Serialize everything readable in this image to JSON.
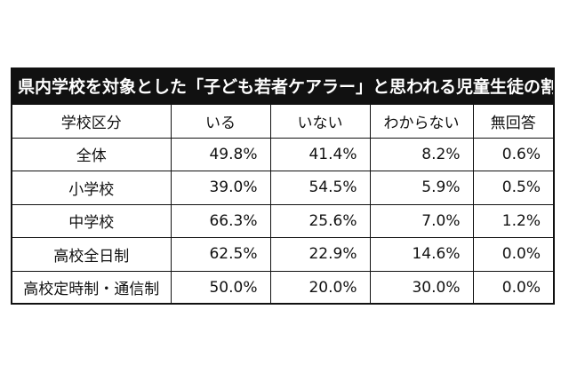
{
  "table": {
    "title": "県内学校を対象とした「子ども若者ケアラー」と思われる児童生徒の割合",
    "headers": [
      "学校区分",
      "いる",
      "いない",
      "わからない",
      "無回答"
    ],
    "rows": [
      {
        "label": "全体",
        "values": [
          "49.8%",
          "41.4%",
          "8.2%",
          "0.6%"
        ]
      },
      {
        "label": "小学校",
        "values": [
          "39.0%",
          "54.5%",
          "5.9%",
          "0.5%"
        ]
      },
      {
        "label": "中学校",
        "values": [
          "66.3%",
          "25.6%",
          "7.0%",
          "1.2%"
        ]
      },
      {
        "label": "高校全日制",
        "values": [
          "62.5%",
          "22.9%",
          "14.6%",
          "0.0%"
        ]
      },
      {
        "label": "高校定時制・通信制",
        "values": [
          "50.0%",
          "20.0%",
          "30.0%",
          "0.0%"
        ]
      }
    ]
  },
  "colors": {
    "title_background": "#111111",
    "title_text": "#ffffff",
    "border": "#111111"
  }
}
